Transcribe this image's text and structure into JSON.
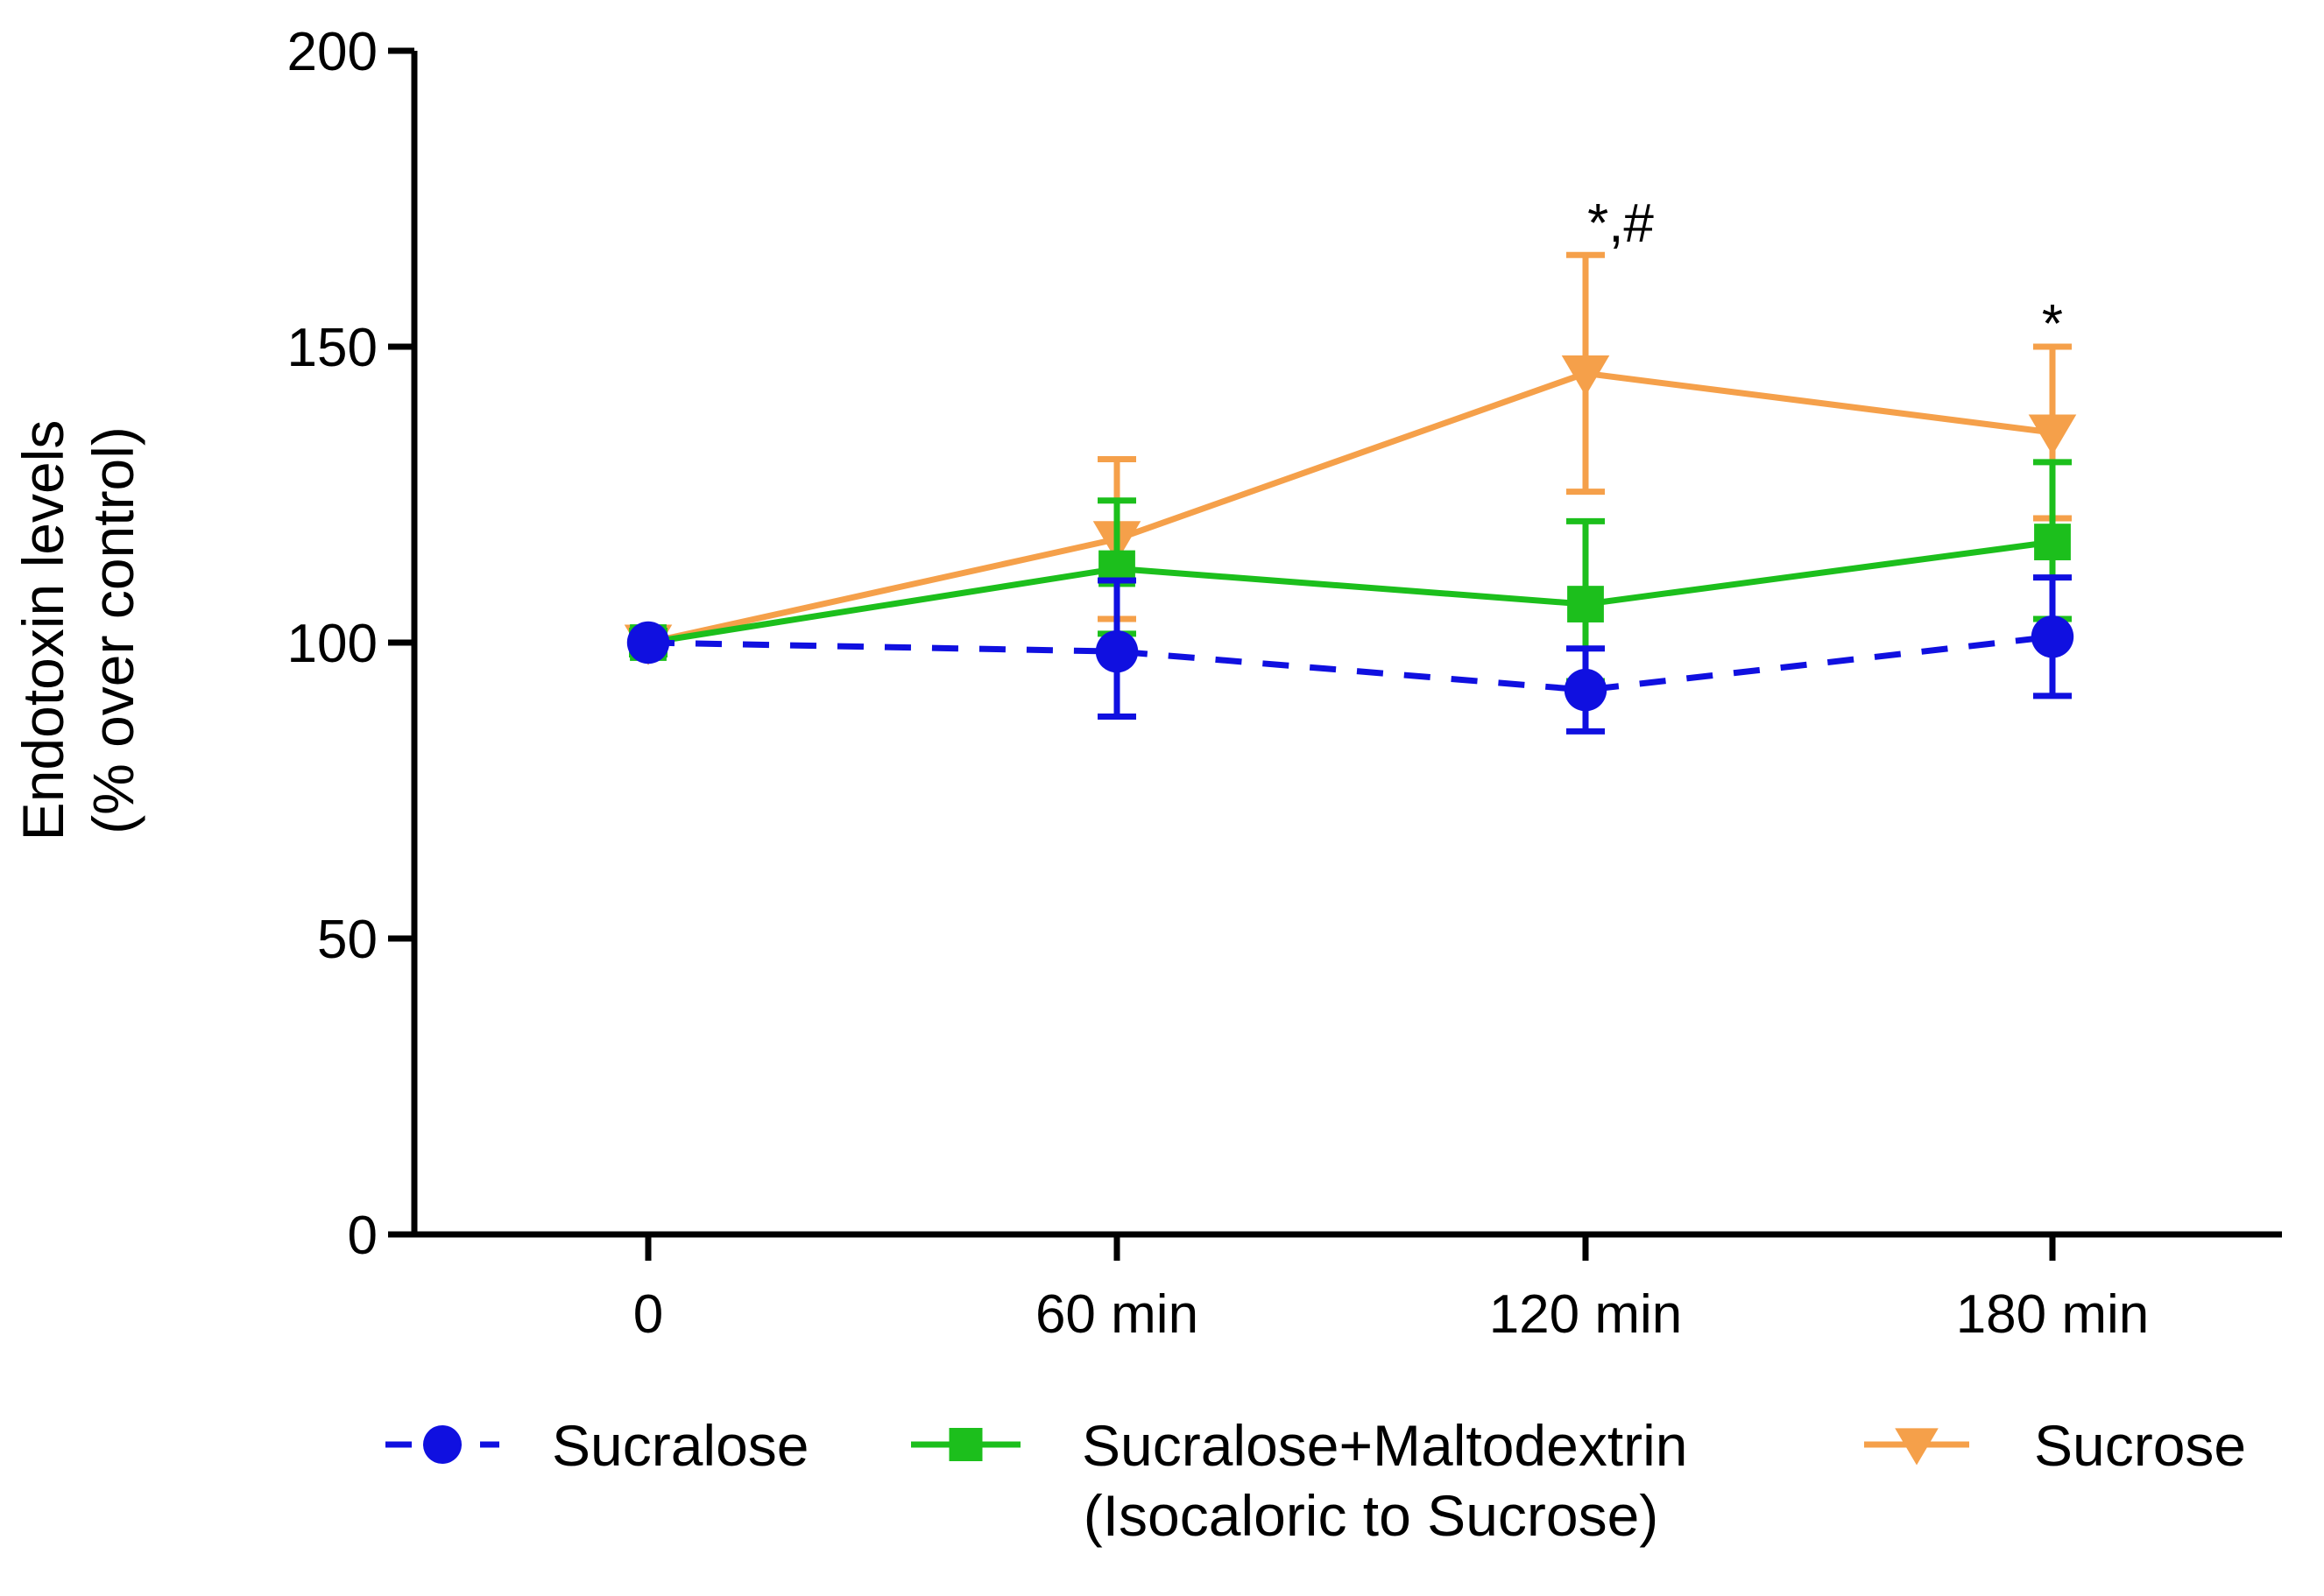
{
  "chart_data": {
    "type": "line",
    "title": "",
    "xlabel": "",
    "ylabel_line1": "Endotoxin levels",
    "ylabel_line2": "(% over control)",
    "categories": [
      "0",
      "60 min",
      "120 min",
      "180 min"
    ],
    "ylim": [
      0,
      200
    ],
    "yticks": [
      0,
      50,
      100,
      150,
      200
    ],
    "ytick_labels": [
      "0",
      "50",
      "100",
      "150",
      "200"
    ],
    "grid": false,
    "series": [
      {
        "name": "Sucralose",
        "color": "#1010e0",
        "marker": "circle",
        "line_style": "dashed",
        "values": [
          100,
          98.5,
          92,
          101
        ],
        "err_upper": [
          1,
          12,
          7,
          10
        ],
        "err_lower": [
          1,
          11,
          7,
          10
        ]
      },
      {
        "name": "Sucralose+Maltodextrin",
        "name_line2": "(Isocaloric to Sucrose)",
        "color": "#1cbf1c",
        "marker": "square",
        "line_style": "solid",
        "values": [
          100,
          112.5,
          106.5,
          117
        ],
        "err_upper": [
          2,
          11.5,
          14,
          13.5
        ],
        "err_lower": [
          2,
          11,
          13,
          13
        ]
      },
      {
        "name": "Sucrose",
        "color": "#f5a04a",
        "marker": "triangle-down",
        "line_style": "solid",
        "values": [
          100,
          117.5,
          145.5,
          135.5
        ],
        "err_upper": [
          0,
          13.5,
          20,
          14.5
        ],
        "err_lower": [
          0,
          13.5,
          20,
          14.5
        ]
      }
    ],
    "annotations": [
      {
        "text": "*,#",
        "category": "120 min",
        "y": 171
      },
      {
        "text": "*",
        "category": "180 min",
        "y": 154
      }
    ],
    "legend": {
      "placement": "bottom"
    }
  }
}
